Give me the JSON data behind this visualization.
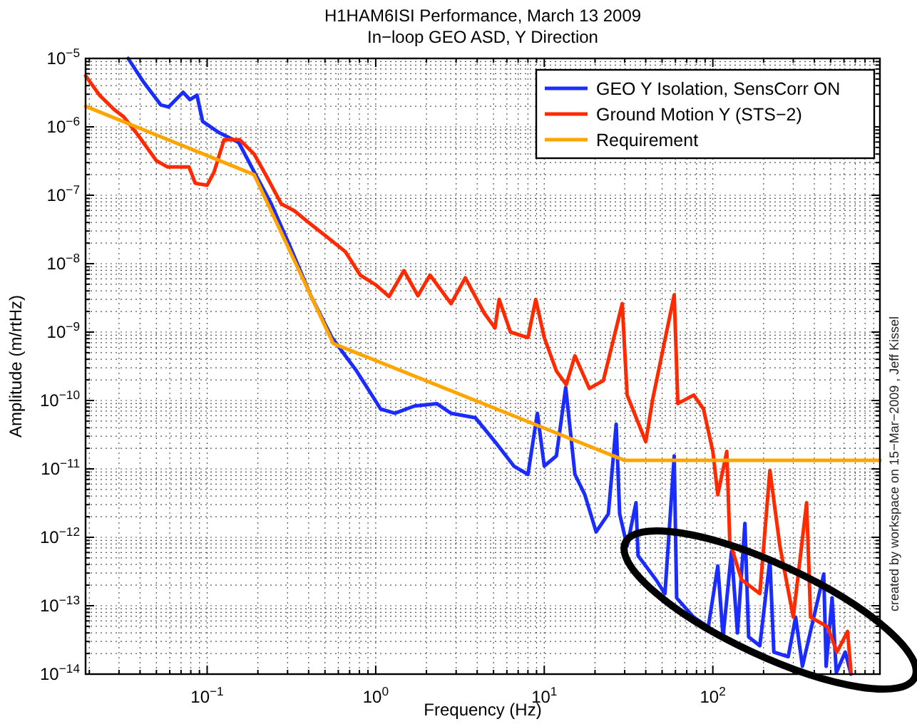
{
  "chart_data": {
    "type": "line",
    "title": "H1HAM6ISI Performance, March 13 2009",
    "subtitle": "In−loop GEO ASD, Y Direction",
    "xlabel": "Frequency (Hz)",
    "ylabel": "Amplitude (m/rtHz)",
    "annotations": [
      "created by workspace on 15−Mar−2009 , Jeff Kissel"
    ],
    "log": "xy",
    "grid": true,
    "legend": "top right",
    "line_style": "solid",
    "marker": "none",
    "xlim": [
      0.019,
      980
    ],
    "ylim": [
      1e-14,
      1e-05
    ],
    "xticks": [
      {
        "value": 0.1,
        "label": "10$^{−1}$"
      },
      {
        "value": 1,
        "label": "10$^{0}$"
      },
      {
        "value": 10,
        "label": "10$^{1}$"
      },
      {
        "value": 100,
        "label": "10$^{2}$"
      }
    ],
    "yticks": [
      {
        "value": 1e-14,
        "label": "10$^{−14}$"
      },
      {
        "value": 1e-13,
        "label": "10$^{−13}$"
      },
      {
        "value": 1e-12,
        "label": "10$^{−12}$"
      },
      {
        "value": 1e-11,
        "label": "10$^{−11}$"
      },
      {
        "value": 1e-10,
        "label": "10$^{−10}$"
      },
      {
        "value": 1e-09,
        "label": "10$^{−9}$"
      },
      {
        "value": 1e-08,
        "label": "10$^{−8}$"
      },
      {
        "value": 1e-07,
        "label": "10$^{−7}$"
      },
      {
        "value": 1e-06,
        "label": "10$^{−6}$"
      },
      {
        "value": 1e-05,
        "label": "10$^{−5}$"
      }
    ],
    "series": [
      {
        "name": "GEO Y Isolation, SensCorr ON",
        "color": "#1a2cff",
        "x": [
          0.034,
          0.042,
          0.053,
          0.059,
          0.072,
          0.079,
          0.087,
          0.094,
          0.117,
          0.154,
          0.19,
          0.24,
          0.31,
          0.41,
          0.55,
          0.77,
          1.07,
          1.3,
          1.7,
          2.3,
          2.8,
          3.9,
          5.1,
          6.6,
          8,
          9.1,
          10,
          11.8,
          13.4,
          14.5,
          15.2,
          17.4,
          20.3,
          24,
          26.7,
          28,
          31,
          35,
          36,
          46,
          52,
          59,
          61,
          77,
          94,
          107,
          115,
          129,
          140,
          155,
          163,
          190,
          218,
          230,
          280,
          310,
          340,
          455,
          470,
          510,
          540,
          610,
          660
        ],
        "values": [
          1e-05,
          4.5e-06,
          2.1e-06,
          1.95e-06,
          3.2e-06,
          2.5e-06,
          2.9e-06,
          1.2e-06,
          8.3e-07,
          5.9e-07,
          2.2e-07,
          7.5e-08,
          1.8e-08,
          3.5e-09,
          8.3e-10,
          2.7e-10,
          7.5e-11,
          6.5e-11,
          8.3e-11,
          9e-11,
          6.5e-11,
          5.6e-11,
          2.5e-11,
          1.1e-11,
          8.3e-12,
          6.5e-11,
          1.1e-11,
          1.55e-11,
          1.55e-10,
          2.5e-11,
          8.3e-12,
          4.2e-12,
          1.2e-12,
          2.2e-12,
          4.5e-11,
          2.2e-12,
          7.4e-13,
          3.2e-12,
          5.4e-13,
          2.4e-13,
          1.5e-13,
          1.55e-11,
          1.3e-13,
          6.8e-14,
          4.9e-14,
          3.8e-13,
          3.5e-14,
          6.2e-13,
          4e-14,
          1.6e-12,
          3.5e-14,
          2.6e-14,
          4.7e-13,
          2.1e-14,
          1.8e-14,
          6.8e-14,
          1.3e-14,
          2.9e-13,
          1.3e-14,
          1.3e-13,
          1.05e-14,
          2.1e-14,
          1e-14
        ]
      },
      {
        "name": "Ground Motion Y (STS−2)",
        "color": "#ff2a00",
        "x": [
          0.019,
          0.023,
          0.028,
          0.032,
          0.039,
          0.05,
          0.058,
          0.078,
          0.085,
          0.1,
          0.11,
          0.126,
          0.156,
          0.19,
          0.225,
          0.275,
          0.33,
          0.41,
          0.52,
          0.66,
          0.81,
          1.0,
          1.2,
          1.47,
          1.78,
          2.1,
          2.8,
          3.4,
          4.4,
          5.1,
          5.4,
          6.3,
          8,
          8.9,
          10,
          11.8,
          13.5,
          15.2,
          18.5,
          22.4,
          29,
          31,
          40,
          44,
          59,
          62,
          77,
          88,
          100,
          107,
          121,
          126,
          148,
          190,
          218,
          250,
          300,
          360,
          380,
          480,
          545,
          630,
          660
        ],
        "values": [
          5.6e-06,
          2.9e-06,
          1.8e-06,
          1.4e-06,
          7.5e-07,
          3.2e-07,
          2.6e-07,
          2.6e-07,
          1.5e-07,
          1.4e-07,
          2.2e-07,
          6.5e-07,
          6.5e-07,
          4e-07,
          1.9e-07,
          7.5e-08,
          5.9e-08,
          3.8e-08,
          2.4e-08,
          1.5e-08,
          6.8e-09,
          4.9e-09,
          3.3e-09,
          7.9e-09,
          3.4e-09,
          6.8e-09,
          2.6e-09,
          6.2e-09,
          1.9e-09,
          1.15e-09,
          3e-09,
          1e-09,
          8.3e-10,
          3e-09,
          8.3e-10,
          2.7e-10,
          1.7e-10,
          4.5e-10,
          1.5e-10,
          1.95e-10,
          2.6e-09,
          1.2e-10,
          2.5e-11,
          1.05e-10,
          3.5e-09,
          9e-11,
          1.2e-10,
          7.5e-11,
          1.8e-11,
          4.2e-12,
          1.8e-11,
          8.7e-13,
          2.4e-13,
          1.5e-13,
          9.5e-12,
          7.4e-13,
          6.8e-14,
          3.2e-12,
          6.8e-14,
          4.9e-14,
          2.1e-14,
          4.2e-14,
          1.05e-14
        ]
      },
      {
        "name": "Requirement",
        "color": "#ffa500",
        "x": [
          0.019,
          0.19,
          0.56,
          30,
          980
        ],
        "values": [
          2e-06,
          2e-07,
          6.8e-10,
          1.33e-11,
          1.33e-11
        ]
      }
    ]
  }
}
